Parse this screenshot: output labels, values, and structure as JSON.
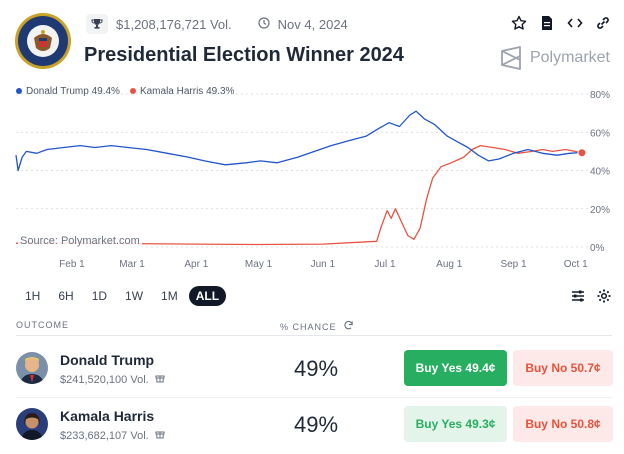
{
  "header": {
    "volume": "$1,208,176,721 Vol.",
    "date": "Nov 4, 2024",
    "title": "Presidential Election Winner 2024",
    "brand": "Polymarket",
    "seal_text": "PRESIDENT OF THE UNITED STATES"
  },
  "legend": {
    "trump": "Donald Trump 49.4%",
    "harris": "Kamala Harris 49.3%"
  },
  "source": "Source: Polymarket.com",
  "ranges": [
    "1H",
    "6H",
    "1D",
    "1W",
    "1M",
    "ALL"
  ],
  "active_range": "ALL",
  "table": {
    "outcome_header": "OUTCOME",
    "chance_header": "% CHANCE"
  },
  "outcomes": [
    {
      "name": "Donald Trump",
      "volume": "$241,520,100 Vol.",
      "chance": "49%",
      "buy_yes": "Buy Yes 49.4¢",
      "buy_no": "Buy No 50.7¢"
    },
    {
      "name": "Kamala Harris",
      "volume": "$233,682,107 Vol.",
      "chance": "49%",
      "buy_yes": "Buy Yes 49.3¢",
      "buy_no": "Buy No 50.8¢"
    }
  ],
  "colors": {
    "trump": "#2255cc",
    "harris": "#e85444",
    "buy_yes": "#27ae60",
    "buy_no": "#e5533d"
  },
  "chart_data": {
    "type": "line",
    "x_ticks": [
      "Feb 1",
      "Mar 1",
      "Apr 1",
      "May 1",
      "Jun 1",
      "Jul 1",
      "Aug 1",
      "Sep 1",
      "Oct 1"
    ],
    "y_ticks": [
      "80%",
      "60%",
      "40%",
      "20%",
      "0%"
    ],
    "ylim": [
      0,
      80
    ],
    "xlim": [
      "2024-01-05",
      "2024-10-05"
    ],
    "series": [
      {
        "name": "Donald Trump",
        "points": [
          [
            "2024-01-05",
            48
          ],
          [
            "2024-01-06",
            40
          ],
          [
            "2024-01-08",
            47
          ],
          [
            "2024-01-10",
            50
          ],
          [
            "2024-01-15",
            49
          ],
          [
            "2024-01-20",
            51
          ],
          [
            "2024-01-28",
            52
          ],
          [
            "2024-02-05",
            53
          ],
          [
            "2024-02-12",
            52
          ],
          [
            "2024-02-20",
            53
          ],
          [
            "2024-02-28",
            52
          ],
          [
            "2024-03-08",
            51
          ],
          [
            "2024-03-18",
            49
          ],
          [
            "2024-03-28",
            47
          ],
          [
            "2024-04-05",
            45
          ],
          [
            "2024-04-15",
            43
          ],
          [
            "2024-04-25",
            44
          ],
          [
            "2024-05-02",
            45
          ],
          [
            "2024-05-10",
            44
          ],
          [
            "2024-05-20",
            47
          ],
          [
            "2024-05-28",
            50
          ],
          [
            "2024-06-05",
            53
          ],
          [
            "2024-06-15",
            56
          ],
          [
            "2024-06-22",
            58
          ],
          [
            "2024-06-28",
            62
          ],
          [
            "2024-07-03",
            65
          ],
          [
            "2024-07-08",
            63
          ],
          [
            "2024-07-13",
            69
          ],
          [
            "2024-07-16",
            71
          ],
          [
            "2024-07-20",
            67
          ],
          [
            "2024-07-25",
            64
          ],
          [
            "2024-07-31",
            58
          ],
          [
            "2024-08-05",
            55
          ],
          [
            "2024-08-10",
            52
          ],
          [
            "2024-08-15",
            48
          ],
          [
            "2024-08-20",
            45
          ],
          [
            "2024-08-25",
            46
          ],
          [
            "2024-09-01",
            49
          ],
          [
            "2024-09-08",
            51
          ],
          [
            "2024-09-15",
            49
          ],
          [
            "2024-09-22",
            48
          ],
          [
            "2024-09-28",
            49
          ],
          [
            "2024-10-04",
            49.4
          ]
        ]
      },
      {
        "name": "Kamala Harris",
        "points": [
          [
            "2024-01-05",
            2
          ],
          [
            "2024-02-01",
            2
          ],
          [
            "2024-03-01",
            1.8
          ],
          [
            "2024-04-01",
            1.5
          ],
          [
            "2024-05-01",
            1.3
          ],
          [
            "2024-06-01",
            1.5
          ],
          [
            "2024-06-27",
            3
          ],
          [
            "2024-06-29",
            10
          ],
          [
            "2024-07-02",
            19
          ],
          [
            "2024-07-04",
            15
          ],
          [
            "2024-07-06",
            20
          ],
          [
            "2024-07-09",
            13
          ],
          [
            "2024-07-12",
            6
          ],
          [
            "2024-07-15",
            4
          ],
          [
            "2024-07-18",
            10
          ],
          [
            "2024-07-21",
            25
          ],
          [
            "2024-07-24",
            36
          ],
          [
            "2024-07-28",
            42
          ],
          [
            "2024-08-02",
            44
          ],
          [
            "2024-08-08",
            47
          ],
          [
            "2024-08-12",
            51
          ],
          [
            "2024-08-16",
            53
          ],
          [
            "2024-08-22",
            52
          ],
          [
            "2024-08-28",
            51
          ],
          [
            "2024-09-03",
            49
          ],
          [
            "2024-09-10",
            50
          ],
          [
            "2024-09-15",
            51
          ],
          [
            "2024-09-20",
            50
          ],
          [
            "2024-09-26",
            51
          ],
          [
            "2024-10-04",
            49.3
          ]
        ]
      }
    ]
  }
}
